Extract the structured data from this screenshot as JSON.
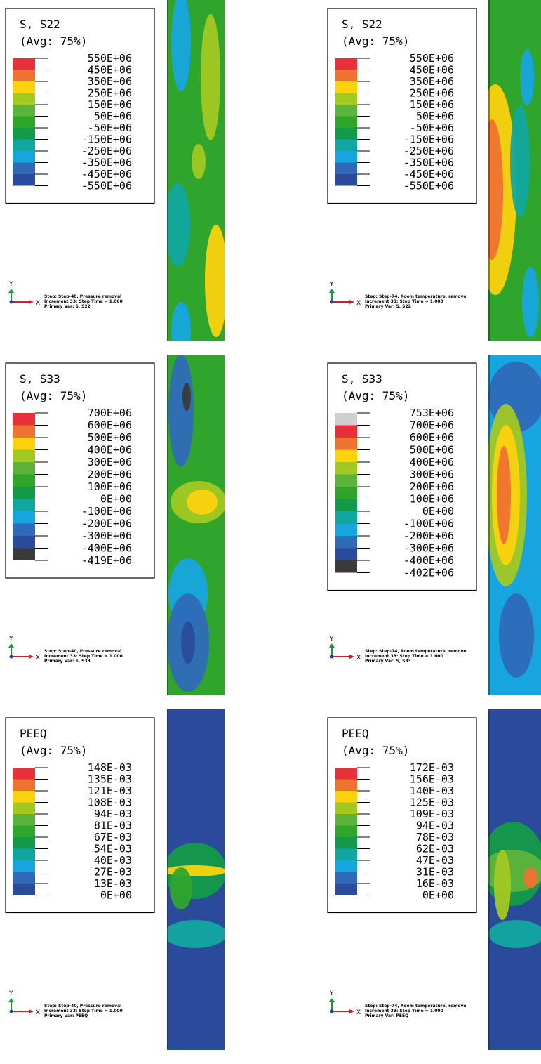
{
  "panels": [
    {
      "title": "S, S22",
      "avg": "(Avg: 75%)",
      "levels": [
        "550E+06",
        "450E+06",
        "350E+06",
        "250E+06",
        "150E+06",
        "50E+06",
        "-50E+06",
        "-150E+06",
        "-250E+06",
        "-350E+06",
        "-450E+06",
        "-550E+06"
      ],
      "colors": [
        "#e8303a",
        "#ee7230",
        "#fbd20d",
        "#a2c822",
        "#5cb33a",
        "#2fa52c",
        "#139a48",
        "#12a6a0",
        "#16a5df",
        "#2e6ab8",
        "#2a4b9b"
      ],
      "axis_y": "Y",
      "axis_x": "X",
      "step": "Step: Step-40, Pressure removal",
      "increment": "Increment     33: Step Time =     1.000",
      "primary": "Primary Var: S, S22"
    },
    {
      "title": "S, S22",
      "avg": "(Avg: 75%)",
      "levels": [
        "550E+06",
        "450E+06",
        "350E+06",
        "250E+06",
        "150E+06",
        "50E+06",
        "-50E+06",
        "-150E+06",
        "-250E+06",
        "-350E+06",
        "-450E+06",
        "-550E+06"
      ],
      "colors": [
        "#e8303a",
        "#ee7230",
        "#fbd20d",
        "#a2c822",
        "#5cb33a",
        "#2fa52c",
        "#139a48",
        "#12a6a0",
        "#16a5df",
        "#2e6ab8",
        "#2a4b9b"
      ],
      "axis_y": "Y",
      "axis_x": "X",
      "step": "Step: Step-74, Room temperature, remove",
      "increment": "Increment     33: Step Time =     1.000",
      "primary": "Primary Var: S, S22"
    },
    {
      "title": "S, S33",
      "avg": "(Avg: 75%)",
      "levels": [
        "700E+06",
        "600E+06",
        "500E+06",
        "400E+06",
        "300E+06",
        "200E+06",
        "100E+06",
        "0E+00",
        "-100E+06",
        "-200E+06",
        "-300E+06",
        "-400E+06",
        "-419E+06"
      ],
      "colors": [
        "#e8303a",
        "#ee7230",
        "#fbd20d",
        "#a2c822",
        "#5cb33a",
        "#2fa52c",
        "#139a48",
        "#12a6a0",
        "#16a5df",
        "#2e6ab8",
        "#2a4b9b",
        "#3a3a3a"
      ],
      "axis_y": "Y",
      "axis_x": "X",
      "step": "Step: Step-40, Pressure removal",
      "increment": "Increment     33: Step Time =     1.000",
      "primary": "Primary Var: S, S33"
    },
    {
      "title": "S, S33",
      "avg": "(Avg: 75%)",
      "levels": [
        "753E+06",
        "700E+06",
        "600E+06",
        "500E+06",
        "400E+06",
        "300E+06",
        "200E+06",
        "100E+06",
        "0E+00",
        "-100E+06",
        "-200E+06",
        "-300E+06",
        "-400E+06",
        "-402E+06"
      ],
      "colors": [
        "#cfcfcf",
        "#e8303a",
        "#ee7230",
        "#fbd20d",
        "#a2c822",
        "#5cb33a",
        "#2fa52c",
        "#139a48",
        "#12a6a0",
        "#16a5df",
        "#2e6ab8",
        "#2a4b9b",
        "#3a3a3a"
      ],
      "axis_y": "Y",
      "axis_x": "X",
      "step": "Step: Step-74, Room temperature, remove",
      "increment": "Increment     33: Step Time =     1.000",
      "primary": "Primary Var: S, S33"
    },
    {
      "title": "PEEQ",
      "avg": "(Avg: 75%)",
      "levels": [
        "148E-03",
        "135E-03",
        "121E-03",
        "108E-03",
        "94E-03",
        "81E-03",
        "67E-03",
        "54E-03",
        "40E-03",
        "27E-03",
        "13E-03",
        "0E+00"
      ],
      "colors": [
        "#e8303a",
        "#ee7230",
        "#fbd20d",
        "#a2c822",
        "#5cb33a",
        "#2fa52c",
        "#139a48",
        "#12a6a0",
        "#16a5df",
        "#2e6ab8",
        "#2a4b9b"
      ],
      "axis_y": "Y",
      "axis_x": "X",
      "step": "Step: Step-40, Pressure removal",
      "increment": "Increment     33: Step Time =     1.000",
      "primary": "Primary Var: PEEQ"
    },
    {
      "title": "PEEQ",
      "avg": "(Avg: 75%)",
      "levels": [
        "172E-03",
        "156E-03",
        "140E-03",
        "125E-03",
        "109E-03",
        "94E-03",
        "78E-03",
        "62E-03",
        "47E-03",
        "31E-03",
        "16E-03",
        "0E+00"
      ],
      "colors": [
        "#e8303a",
        "#ee7230",
        "#fbd20d",
        "#a2c822",
        "#5cb33a",
        "#2fa52c",
        "#139a48",
        "#12a6a0",
        "#16a5df",
        "#2e6ab8",
        "#2a4b9b"
      ],
      "axis_y": "Y",
      "axis_x": "X",
      "step": "Step: Step-74, Room temperature, remove",
      "increment": "Increment     33: Step Time =     1.000",
      "primary": "Primary Var: PEEQ"
    }
  ]
}
